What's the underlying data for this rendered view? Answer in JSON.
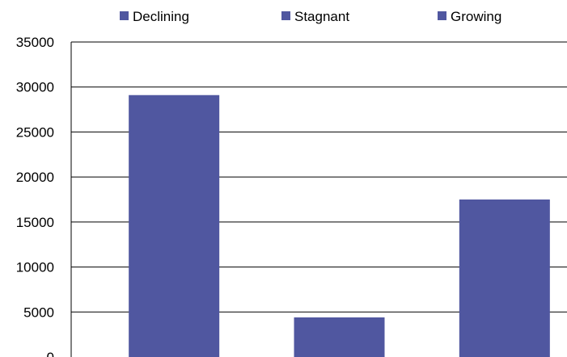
{
  "chart_data": {
    "type": "bar",
    "categories": [
      "Declining",
      "Stagnant",
      "Growing"
    ],
    "values": [
      29100,
      4400,
      17500
    ],
    "ylim": [
      0,
      35000
    ],
    "yticks": [
      0,
      5000,
      10000,
      15000,
      20000,
      25000,
      30000,
      35000
    ],
    "grid": true,
    "legend": {
      "placement": "top",
      "entries": [
        "Declining",
        "Stagnant",
        "Growing"
      ]
    },
    "bar_color": "#5057A0",
    "title": "",
    "xlabel": "",
    "ylabel": ""
  }
}
